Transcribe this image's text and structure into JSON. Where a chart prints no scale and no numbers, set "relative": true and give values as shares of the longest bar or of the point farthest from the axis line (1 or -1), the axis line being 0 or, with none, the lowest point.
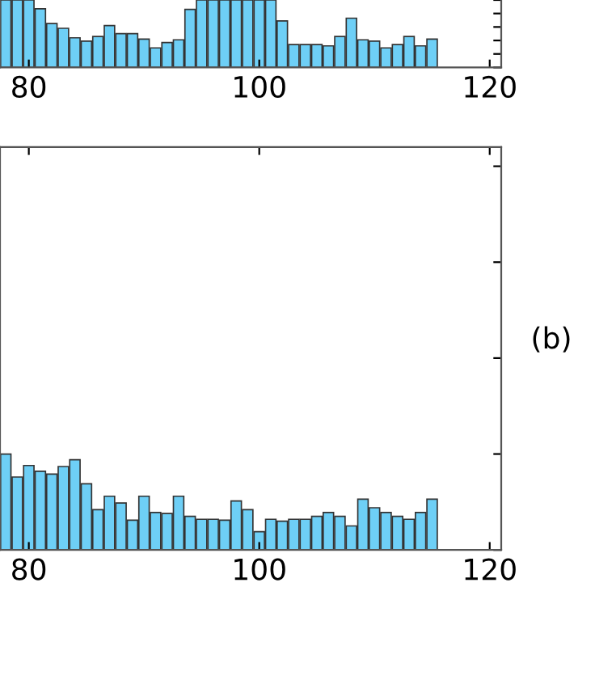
{
  "chart_data": [
    {
      "type": "bar",
      "relative": true,
      "color": "#6ecff6",
      "xlim": [
        77.5,
        121
      ],
      "xticks": [
        80,
        100,
        120
      ],
      "tick_labels": "x",
      "grid": false,
      "legend": false,
      "x": [
        78,
        79,
        80,
        81,
        82,
        83,
        84,
        85,
        86,
        87,
        88,
        89,
        90,
        91,
        92,
        93,
        94,
        95,
        96,
        97,
        98,
        99,
        100,
        101,
        102,
        103,
        104,
        105,
        106,
        107,
        108,
        109,
        110,
        111,
        112,
        113,
        114,
        115
      ],
      "values": [
        1,
        1,
        1,
        0.87,
        0.65,
        0.58,
        0.44,
        0.39,
        0.46,
        0.62,
        0.5,
        0.5,
        0.42,
        0.29,
        0.37,
        0.41,
        0.86,
        1,
        1,
        1,
        1,
        1,
        1,
        1,
        0.69,
        0.34,
        0.34,
        0.34,
        0.32,
        0.46,
        0.73,
        0.41,
        0.39,
        0.29,
        0.34,
        0.46,
        0.32,
        0.42
      ]
    },
    {
      "type": "bar",
      "relative": true,
      "color": "#6ecff6",
      "xlim": [
        77.5,
        121
      ],
      "xticks": [
        80,
        100,
        120
      ],
      "tick_labels": "x",
      "grid": false,
      "legend": false,
      "annotations": [
        "(b)"
      ],
      "x": [
        78,
        79,
        80,
        81,
        82,
        83,
        84,
        85,
        86,
        87,
        88,
        89,
        90,
        91,
        92,
        93,
        94,
        95,
        96,
        97,
        98,
        99,
        100,
        101,
        102,
        103,
        104,
        105,
        106,
        107,
        108,
        109,
        110,
        111,
        112,
        113,
        114,
        115
      ],
      "values": [
        1,
        0.76,
        0.88,
        0.82,
        0.79,
        0.87,
        0.94,
        0.69,
        0.42,
        0.56,
        0.49,
        0.31,
        0.56,
        0.39,
        0.38,
        0.56,
        0.35,
        0.32,
        0.32,
        0.31,
        0.51,
        0.42,
        0.19,
        0.32,
        0.3,
        0.32,
        0.32,
        0.35,
        0.39,
        0.35,
        0.25,
        0.53,
        0.44,
        0.39,
        0.35,
        0.32,
        0.39,
        0.53
      ]
    }
  ]
}
